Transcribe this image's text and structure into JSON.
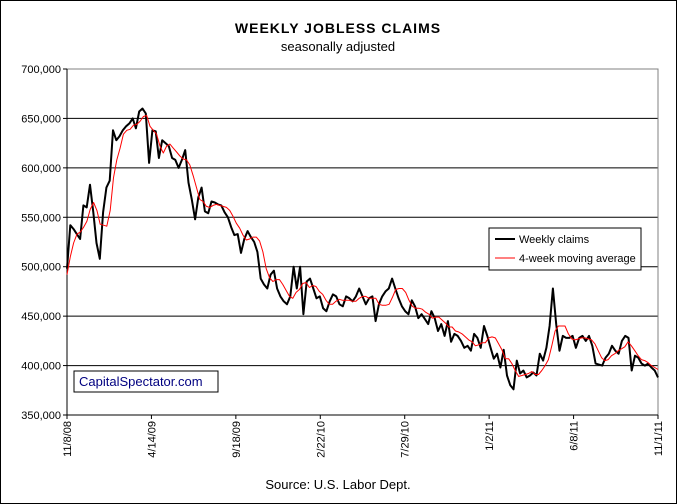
{
  "chart_data": {
    "type": "line",
    "title": "WEEKLY JOBLESS CLAIMS",
    "subtitle": "seasonally adjusted",
    "source": "Source: U.S. Labor Dept.",
    "watermark": "CapitalSpectator.com",
    "xlabel": "",
    "ylabel": "",
    "ylim": [
      350000,
      700000
    ],
    "yticks": [
      "350,000",
      "400,000",
      "450,000",
      "500,000",
      "550,000",
      "600,000",
      "650,000",
      "700,000"
    ],
    "ytick_values": [
      350000,
      400000,
      450000,
      500000,
      550000,
      600000,
      650000,
      700000
    ],
    "xticks": [
      "11/8/08",
      "4/14/09",
      "9/18/09",
      "2/22/10",
      "7/29/10",
      "1/2/11",
      "6/8/11",
      "11/1/11"
    ],
    "grid": "horizontal",
    "legend_position": "right",
    "colors": {
      "weekly": "#000000",
      "moving_average": "#ff0000"
    },
    "series": [
      {
        "name": "Weekly claims",
        "color": "#000000",
        "values": [
          498000,
          542000,
          538000,
          533000,
          528000,
          562000,
          560000,
          583000,
          555000,
          524000,
          508000,
          555000,
          580000,
          587000,
          638000,
          628000,
          632000,
          638000,
          642000,
          645000,
          650000,
          640000,
          657000,
          660000,
          655000,
          605000,
          638000,
          637000,
          610000,
          628000,
          625000,
          622000,
          610000,
          608000,
          600000,
          608000,
          618000,
          585000,
          568000,
          548000,
          570000,
          580000,
          556000,
          554000,
          566000,
          565000,
          563000,
          562000,
          555000,
          550000,
          540000,
          532000,
          533000,
          514000,
          528000,
          536000,
          530000,
          525000,
          515000,
          488000,
          482000,
          478000,
          492000,
          496000,
          478000,
          470000,
          465000,
          462000,
          470000,
          500000,
          478000,
          500000,
          452000,
          485000,
          488000,
          478000,
          468000,
          470000,
          458000,
          455000,
          465000,
          472000,
          470000,
          462000,
          460000,
          470000,
          468000,
          465000,
          470000,
          478000,
          470000,
          462000,
          468000,
          470000,
          445000,
          462000,
          470000,
          475000,
          478000,
          488000,
          478000,
          468000,
          460000,
          455000,
          452000,
          466000,
          460000,
          448000,
          452000,
          447000,
          442000,
          455000,
          448000,
          435000,
          442000,
          430000,
          445000,
          424000,
          432000,
          430000,
          425000,
          418000,
          420000,
          415000,
          432000,
          428000,
          418000,
          440000,
          430000,
          418000,
          407000,
          412000,
          398000,
          416000,
          390000,
          380000,
          376000,
          405000,
          392000,
          395000,
          388000,
          390000,
          393000,
          390000,
          412000,
          405000,
          418000,
          440000,
          478000,
          442000,
          415000,
          430000,
          428000,
          428000,
          430000,
          418000,
          428000,
          430000,
          425000,
          430000,
          420000,
          402000,
          401000,
          400000,
          408000,
          412000,
          420000,
          415000,
          412000,
          425000,
          430000,
          428000,
          395000,
          410000,
          408000,
          402000,
          400000,
          402000,
          398000,
          395000,
          388000
        ]
      },
      {
        "name": "4-week moving average",
        "color": "#ff0000",
        "values": [
          492000,
          510000,
          524000,
          533000,
          535000,
          540000,
          546000,
          558000,
          565000,
          557000,
          543000,
          542000,
          541000,
          557000,
          590000,
          608000,
          620000,
          634000,
          638000,
          639000,
          643000,
          644000,
          647000,
          652000,
          653000,
          642000,
          638000,
          634000,
          622000,
          615000,
          622000,
          624000,
          620000,
          616000,
          612000,
          609000,
          608000,
          603000,
          592000,
          580000,
          568000,
          566000,
          561000,
          560000,
          562000,
          563000,
          562000,
          561000,
          560000,
          557000,
          551000,
          544000,
          539000,
          532000,
          527000,
          528000,
          530000,
          530000,
          526000,
          515000,
          498000,
          489000,
          485000,
          487000,
          487000,
          482000,
          476000,
          470000,
          468000,
          474000,
          477000,
          483000,
          484000,
          479000,
          481000,
          480000,
          475000,
          472000,
          466000,
          462000,
          462000,
          465000,
          467000,
          466000,
          466000,
          466000,
          465000,
          465000,
          468000,
          470000,
          470000,
          468000,
          468000,
          468000,
          462000,
          461000,
          461000,
          462000,
          469000,
          477000,
          478000,
          478000,
          474000,
          466000,
          460000,
          458000,
          458000,
          457000,
          454000,
          452000,
          448000,
          449000,
          449000,
          446000,
          443000,
          439000,
          439000,
          435000,
          434000,
          432000,
          429000,
          426000,
          424000,
          420000,
          421000,
          423000,
          423000,
          428000,
          429000,
          428000,
          422000,
          416000,
          407000,
          407000,
          402000,
          395000,
          389000,
          390000,
          391000,
          392000,
          394000,
          391000,
          391000,
          395000,
          400000,
          406000,
          420000,
          435000,
          440000,
          440000,
          440000,
          432000,
          427000,
          426000,
          427000,
          428000,
          428000,
          427000,
          426000,
          422000,
          415000,
          408000,
          405000,
          406000,
          410000,
          412000,
          415000,
          417000,
          419000,
          424000,
          420000,
          415000,
          410000,
          406000,
          405000,
          403000,
          400000,
          398000,
          396000
        ]
      }
    ]
  }
}
